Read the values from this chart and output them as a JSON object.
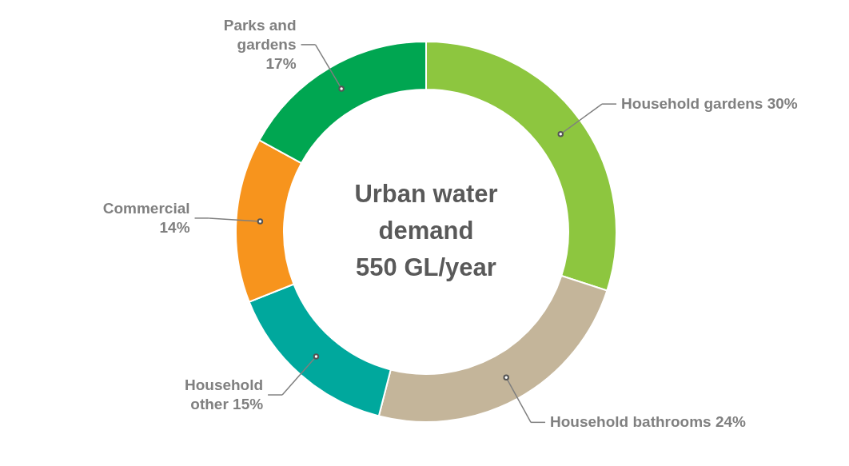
{
  "chart_data": {
    "type": "donut",
    "title": "Urban water demand",
    "subtitle": "550 GL/year",
    "categories": [
      "Household gardens",
      "Household bathrooms",
      "Household other",
      "Commercial",
      "Parks and gardens"
    ],
    "values": [
      30,
      24,
      15,
      14,
      17
    ],
    "colors": [
      "#8dc63f",
      "#c4b59a",
      "#00a89d",
      "#f7941d",
      "#00a651"
    ],
    "value_labels": [
      "30%",
      "24%",
      "15%",
      "14%",
      "17%"
    ]
  }
}
